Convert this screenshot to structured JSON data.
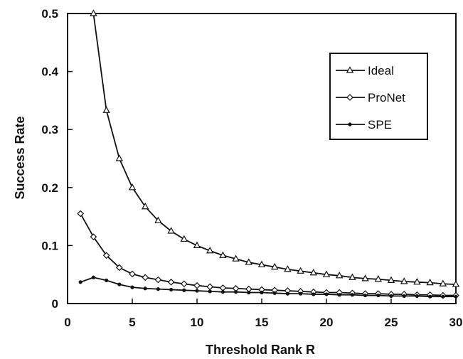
{
  "chart_data": {
    "type": "line",
    "xlabel": "Threshold Rank R",
    "ylabel": "Success Rate",
    "xlim": [
      0,
      30
    ],
    "ylim": [
      0,
      0.5
    ],
    "xticks": [
      "0",
      "5",
      "10",
      "15",
      "20",
      "25",
      "30"
    ],
    "yticks": [
      "0",
      "0.1",
      "0.2",
      "0.3",
      "0.4",
      "0.5"
    ],
    "grid": false,
    "legend_position": "top-right",
    "series": [
      {
        "name": "Ideal",
        "marker": "triangle",
        "x": [
          2,
          3,
          4,
          5,
          6,
          7,
          8,
          9,
          10,
          11,
          12,
          13,
          14,
          15,
          16,
          17,
          18,
          19,
          20,
          21,
          22,
          23,
          24,
          25,
          26,
          27,
          28,
          29,
          30
        ],
        "values": [
          0.5,
          0.333,
          0.25,
          0.2,
          0.167,
          0.143,
          0.125,
          0.111,
          0.1,
          0.091,
          0.083,
          0.077,
          0.071,
          0.067,
          0.063,
          0.059,
          0.056,
          0.053,
          0.05,
          0.048,
          0.045,
          0.043,
          0.042,
          0.04,
          0.038,
          0.037,
          0.036,
          0.034,
          0.033
        ]
      },
      {
        "name": "ProNet",
        "marker": "diamond",
        "x": [
          1,
          2,
          3,
          4,
          5,
          6,
          7,
          8,
          9,
          10,
          11,
          12,
          13,
          14,
          15,
          16,
          17,
          18,
          19,
          20,
          21,
          22,
          23,
          24,
          25,
          26,
          27,
          28,
          29,
          30
        ],
        "values": [
          0.155,
          0.115,
          0.083,
          0.062,
          0.051,
          0.045,
          0.041,
          0.037,
          0.034,
          0.031,
          0.029,
          0.027,
          0.026,
          0.025,
          0.024,
          0.023,
          0.022,
          0.021,
          0.02,
          0.019,
          0.019,
          0.018,
          0.017,
          0.017,
          0.016,
          0.016,
          0.015,
          0.015,
          0.014,
          0.014
        ]
      },
      {
        "name": "SPE",
        "marker": "dot",
        "x": [
          1,
          2,
          3,
          4,
          5,
          6,
          7,
          8,
          9,
          10,
          11,
          12,
          13,
          14,
          15,
          16,
          17,
          18,
          19,
          20,
          21,
          22,
          23,
          24,
          25,
          26,
          27,
          28,
          29,
          30
        ],
        "values": [
          0.037,
          0.045,
          0.04,
          0.033,
          0.028,
          0.026,
          0.025,
          0.024,
          0.023,
          0.022,
          0.021,
          0.02,
          0.02,
          0.019,
          0.019,
          0.018,
          0.017,
          0.017,
          0.016,
          0.016,
          0.015,
          0.015,
          0.014,
          0.014,
          0.013,
          0.013,
          0.013,
          0.012,
          0.012,
          0.012
        ]
      }
    ]
  }
}
